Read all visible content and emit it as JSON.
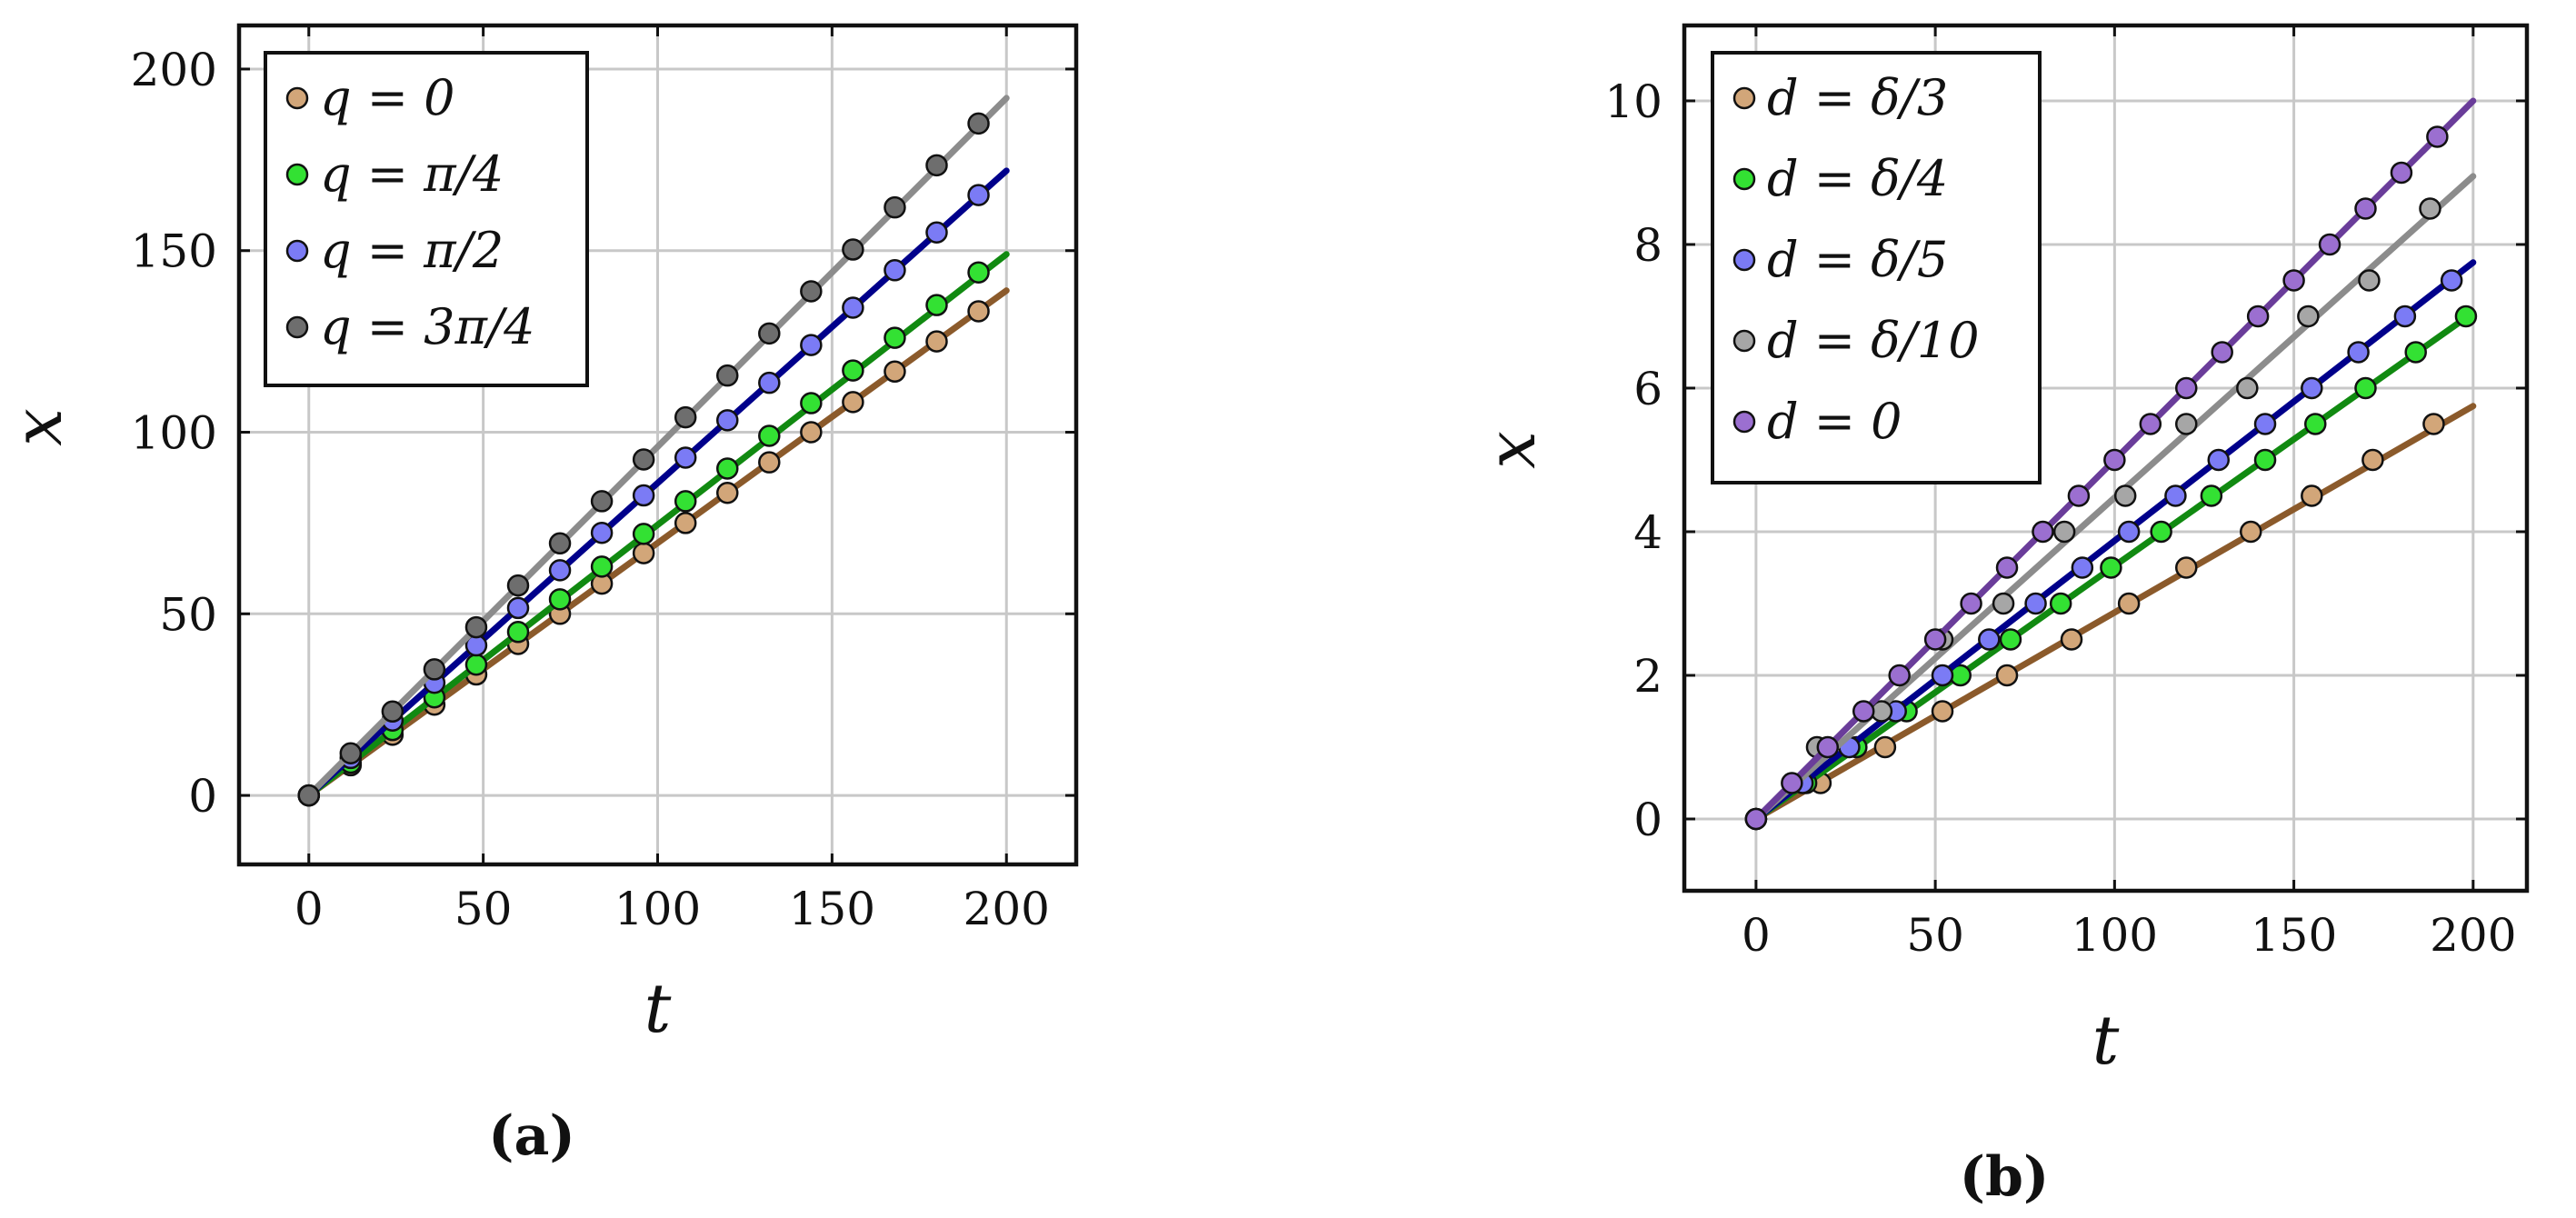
{
  "chart_data": [
    {
      "type": "line",
      "caption": "(a)",
      "xlabel": "t",
      "ylabel": "x",
      "xlim": [
        -20,
        220
      ],
      "ylim": [
        -19,
        212
      ],
      "xticks": [
        0,
        50,
        100,
        150,
        200
      ],
      "yticks": [
        0,
        50,
        100,
        150,
        200
      ],
      "grid": true,
      "legend_position": "top-left",
      "series": [
        {
          "name": "q = 0",
          "line_color": "#8b5a2b",
          "marker_color": "#d2a679",
          "line": [
            [
              0,
              0
            ],
            [
              200,
              139
            ]
          ],
          "points": {
            "x": [
              0,
              12,
              24,
              36,
              48,
              60,
              72,
              84,
              96,
              108,
              120,
              132,
              144,
              156,
              168,
              180,
              192
            ],
            "y": [
              0,
              8.3,
              16.7,
              25,
              33.3,
              41.7,
              50,
              58.3,
              66.7,
              75,
              83.3,
              91.7,
              100,
              108.3,
              116.7,
              125,
              133.3
            ]
          }
        },
        {
          "name": "q = π/4",
          "line_color": "#118a11",
          "marker_color": "#33e133",
          "line": [
            [
              0,
              0
            ],
            [
              200,
              149
            ]
          ],
          "points": {
            "x": [
              0,
              12,
              24,
              36,
              48,
              60,
              72,
              84,
              96,
              108,
              120,
              132,
              144,
              156,
              168,
              180,
              192
            ],
            "y": [
              0,
              9,
              18,
              27,
              36,
              45,
              54,
              63,
              72,
              81,
              90,
              99,
              108,
              117,
              126,
              135,
              144
            ]
          }
        },
        {
          "name": "q = π/2",
          "line_color": "#00008b",
          "marker_color": "#7b7bf5",
          "line": [
            [
              0,
              0
            ],
            [
              200,
              172
            ]
          ],
          "points": {
            "x": [
              0,
              12,
              24,
              36,
              48,
              60,
              72,
              84,
              96,
              108,
              120,
              132,
              144,
              156,
              168,
              180,
              192
            ],
            "y": [
              0,
              10.3,
              20.6,
              31,
              41.3,
              51.6,
              62,
              72.3,
              82.6,
              93,
              103.3,
              113.6,
              124,
              134.3,
              144.6,
              155,
              165.3
            ]
          }
        },
        {
          "name": "q = 3π/4",
          "line_color": "#8c8c8c",
          "marker_color": "#6e6e6e",
          "line": [
            [
              0,
              0
            ],
            [
              200,
              192
            ]
          ],
          "points": {
            "x": [
              0,
              12,
              24,
              36,
              48,
              60,
              72,
              84,
              96,
              108,
              120,
              132,
              144,
              156,
              168,
              180,
              192
            ],
            "y": [
              0,
              11.6,
              23.1,
              34.7,
              46.3,
              57.8,
              69.4,
              81,
              92.5,
              104.1,
              115.6,
              127.2,
              138.8,
              150.3,
              161.9,
              173.5,
              185
            ]
          }
        }
      ]
    },
    {
      "type": "line",
      "caption": "(b)",
      "xlabel": "t",
      "ylabel": "x",
      "xlim": [
        -20,
        215
      ],
      "ylim": [
        -1,
        11.05
      ],
      "xticks": [
        0,
        50,
        100,
        150,
        200
      ],
      "yticks": [
        0,
        2,
        4,
        6,
        8,
        10
      ],
      "grid": true,
      "legend_position": "top-left",
      "series": [
        {
          "name": "d = δ/3",
          "line_color": "#8b5a2b",
          "marker_color": "#d2a679",
          "line": [
            [
              0,
              0
            ],
            [
              200,
              5.75
            ]
          ],
          "points": {
            "x": [
              0,
              18,
              36,
              52,
              70,
              88,
              104,
              120,
              138,
              155,
              172,
              189
            ],
            "y": [
              0,
              0.5,
              1,
              1.5,
              2,
              2.5,
              3,
              3.5,
              4,
              4.5,
              5,
              5.5
            ]
          }
        },
        {
          "name": "d = δ/4",
          "line_color": "#118a11",
          "marker_color": "#33e133",
          "line": [
            [
              0,
              0
            ],
            [
              200,
              7.05
            ]
          ],
          "points": {
            "x": [
              0,
              14,
              28,
              42,
              57,
              71,
              85,
              99,
              113,
              127,
              142,
              156,
              170,
              184,
              198
            ],
            "y": [
              0,
              0.5,
              1,
              1.5,
              2,
              2.5,
              3,
              3.5,
              4,
              4.5,
              5,
              5.5,
              6,
              6.5,
              7
            ]
          }
        },
        {
          "name": "d = δ/5",
          "line_color": "#00008b",
          "marker_color": "#7b7bf5",
          "line": [
            [
              0,
              0
            ],
            [
              200,
              7.75
            ]
          ],
          "points": {
            "x": [
              0,
              13,
              26,
              39,
              52,
              65,
              78,
              91,
              104,
              117,
              129,
              142,
              155,
              168,
              181,
              194
            ],
            "y": [
              0,
              0.5,
              1,
              1.5,
              2,
              2.5,
              3,
              3.5,
              4,
              4.5,
              5,
              5.5,
              6,
              6.5,
              7,
              7.5
            ]
          }
        },
        {
          "name": "d = δ/10",
          "line_color": "#8c8c8c",
          "marker_color": "#a6a6a6",
          "line": [
            [
              0,
              0
            ],
            [
              200,
              8.95
            ]
          ],
          "points": {
            "x": [
              0,
              17,
              35,
              52,
              69,
              86,
              103,
              120,
              137,
              154,
              171,
              188
            ],
            "y": [
              0,
              1,
              1.5,
              2.5,
              3,
              4,
              4.5,
              5.5,
              6,
              7,
              7.5,
              8.5
            ]
          }
        },
        {
          "name": "d = 0",
          "line_color": "#6a3d9a",
          "marker_color": "#9b6fd0",
          "line": [
            [
              0,
              0
            ],
            [
              200,
              10
            ]
          ],
          "points": {
            "x": [
              0,
              10,
              20,
              30,
              40,
              50,
              60,
              70,
              80,
              90,
              100,
              110,
              120,
              130,
              140,
              150,
              160,
              170,
              180,
              190
            ],
            "y": [
              0,
              0.5,
              1,
              1.5,
              2,
              2.5,
              3,
              3.5,
              4,
              4.5,
              5,
              5.5,
              6,
              6.5,
              7,
              7.5,
              8,
              8.5,
              9,
              9.5
            ]
          }
        }
      ]
    }
  ]
}
